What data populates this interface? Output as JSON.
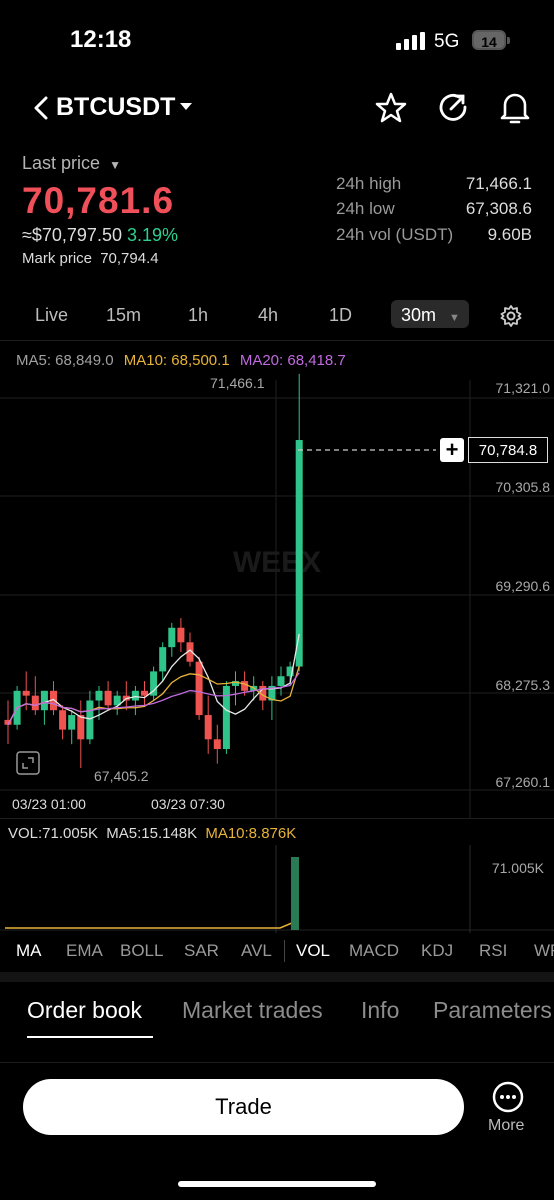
{
  "status": {
    "time": "12:18",
    "network": "5G",
    "battery": "14"
  },
  "header": {
    "pair": "BTCUSDT",
    "icons": [
      "back-chevron-icon",
      "dropdown-icon",
      "star-icon",
      "share-icon",
      "bell-icon"
    ]
  },
  "price": {
    "last_label": "Last price",
    "last": "70,781.6",
    "approx": "≈$70,797.50",
    "change": "3.19%",
    "mark_label": "Mark price",
    "mark": "70,794.4"
  },
  "stats": [
    {
      "label": "24h high",
      "value": "71,466.1"
    },
    {
      "label": "24h low",
      "value": "67,308.6"
    },
    {
      "label": "24h vol (USDT)",
      "value": "9.60B"
    }
  ],
  "timeframes": [
    "Live",
    "15m",
    "1h",
    "4h",
    "1D"
  ],
  "timeframe_active": "30m",
  "chart": {
    "ma5": "MA5: 68,849.0",
    "ma10": "MA10: 68,500.1",
    "ma20": "MA20: 68,418.7",
    "high_label": "71,466.1",
    "low_label": "67,405.2",
    "current_tag": "70,784.8",
    "y_ticks": [
      "71,321.0",
      "70,305.8",
      "69,290.6",
      "68,275.3",
      "67,260.1"
    ],
    "x_ticks": [
      "03/23 01:00",
      "03/23 07:30"
    ],
    "watermark": "WEEX",
    "colors": {
      "up": "#2fc58a",
      "down": "#ef5350",
      "ma5": "#e8e8e8",
      "ma10": "#e8b33a",
      "ma20": "#c06adf"
    }
  },
  "chart_data": {
    "type": "candlestick",
    "ylim": [
      67260.1,
      71600
    ],
    "candles": [
      {
        "o": 67900,
        "h": 68100,
        "l": 67650,
        "c": 67850
      },
      {
        "o": 67850,
        "h": 68250,
        "l": 67800,
        "c": 68200
      },
      {
        "o": 68200,
        "h": 68400,
        "l": 68000,
        "c": 68150
      },
      {
        "o": 68150,
        "h": 68350,
        "l": 67950,
        "c": 68000
      },
      {
        "o": 68000,
        "h": 68200,
        "l": 67850,
        "c": 68200
      },
      {
        "o": 68200,
        "h": 68300,
        "l": 67950,
        "c": 68000
      },
      {
        "o": 68000,
        "h": 68050,
        "l": 67700,
        "c": 67800
      },
      {
        "o": 67800,
        "h": 68000,
        "l": 67650,
        "c": 67950
      },
      {
        "o": 67950,
        "h": 68100,
        "l": 67405.2,
        "c": 67700
      },
      {
        "o": 67700,
        "h": 68200,
        "l": 67650,
        "c": 68100
      },
      {
        "o": 68100,
        "h": 68250,
        "l": 67900,
        "c": 68200
      },
      {
        "o": 68200,
        "h": 68300,
        "l": 68000,
        "c": 68050
      },
      {
        "o": 68050,
        "h": 68200,
        "l": 67950,
        "c": 68150
      },
      {
        "o": 68150,
        "h": 68300,
        "l": 68000,
        "c": 68100
      },
      {
        "o": 68100,
        "h": 68250,
        "l": 67950,
        "c": 68200
      },
      {
        "o": 68200,
        "h": 68300,
        "l": 68050,
        "c": 68150
      },
      {
        "o": 68150,
        "h": 68450,
        "l": 68100,
        "c": 68400
      },
      {
        "o": 68400,
        "h": 68700,
        "l": 68300,
        "c": 68650
      },
      {
        "o": 68650,
        "h": 68900,
        "l": 68550,
        "c": 68850
      },
      {
        "o": 68850,
        "h": 68950,
        "l": 68600,
        "c": 68700
      },
      {
        "o": 68700,
        "h": 68800,
        "l": 68450,
        "c": 68500
      },
      {
        "o": 68500,
        "h": 68550,
        "l": 67900,
        "c": 67950
      },
      {
        "o": 67950,
        "h": 68150,
        "l": 67550,
        "c": 67700
      },
      {
        "o": 67700,
        "h": 67850,
        "l": 67450,
        "c": 67600
      },
      {
        "o": 67600,
        "h": 68300,
        "l": 67550,
        "c": 68250
      },
      {
        "o": 68250,
        "h": 68400,
        "l": 68050,
        "c": 68300
      },
      {
        "o": 68300,
        "h": 68400,
        "l": 68150,
        "c": 68200
      },
      {
        "o": 68200,
        "h": 68350,
        "l": 68100,
        "c": 68250
      },
      {
        "o": 68250,
        "h": 68300,
        "l": 68000,
        "c": 68100
      },
      {
        "o": 68100,
        "h": 68350,
        "l": 67900,
        "c": 68250
      },
      {
        "o": 68250,
        "h": 68450,
        "l": 68150,
        "c": 68350
      },
      {
        "o": 68350,
        "h": 68500,
        "l": 68250,
        "c": 68450
      },
      {
        "o": 68450,
        "h": 71466.1,
        "l": 68400,
        "c": 70784.8
      }
    ],
    "volume_max_label": "71.005K"
  },
  "volume": {
    "vol": "VOL:71.005K",
    "ma5": "MA5:15.148K",
    "ma10": "MA10:8.876K",
    "axis_max": "71.005K"
  },
  "indicators": [
    "MA",
    "EMA",
    "BOLL",
    "SAR",
    "AVL",
    "VOL",
    "MACD",
    "KDJ",
    "RSI",
    "WR"
  ],
  "tabs": [
    "Order book",
    "Market trades",
    "Info",
    "Parameters"
  ],
  "footer": {
    "trade": "Trade",
    "more": "More"
  }
}
